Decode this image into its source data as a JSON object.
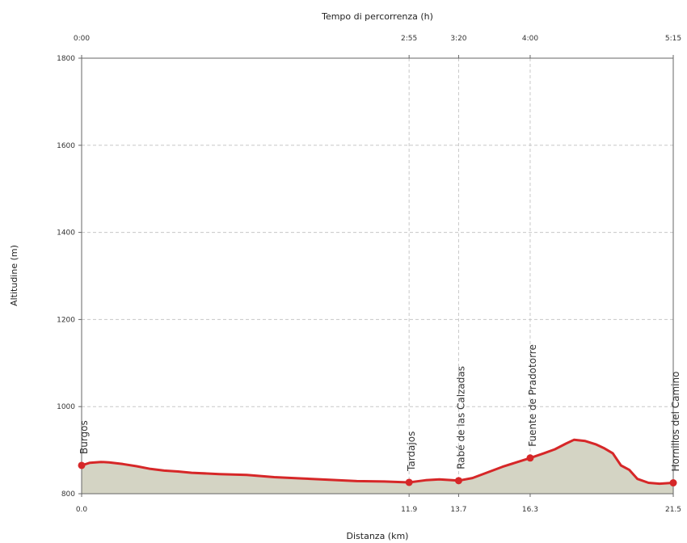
{
  "chart_data": {
    "type": "area",
    "title": "",
    "xlabel": "Distanza (km)",
    "ylabel": "Altitudine (m)",
    "top_xlabel": "Tempo di percorrenza (h)",
    "xlim": [
      0,
      21.5
    ],
    "ylim": [
      800,
      1800
    ],
    "grid": true,
    "y_ticks": [
      800,
      1000,
      1200,
      1400,
      1600,
      1800
    ],
    "x_ticks": [
      {
        "value": 0.0,
        "label": "0.0"
      },
      {
        "value": 11.9,
        "label": "11.9"
      },
      {
        "value": 13.7,
        "label": "13.7"
      },
      {
        "value": 16.3,
        "label": "16.3"
      },
      {
        "value": 21.5,
        "label": "21.5"
      }
    ],
    "time_ticks": [
      {
        "value": 0.0,
        "label": "0:00"
      },
      {
        "value": 11.9,
        "label": "2:55"
      },
      {
        "value": 13.7,
        "label": "3:20"
      },
      {
        "value": 16.3,
        "label": "4:00"
      },
      {
        "value": 21.5,
        "label": "5:15"
      }
    ],
    "waypoints": [
      {
        "name": "Burgos",
        "x": 0.0,
        "y": 865
      },
      {
        "name": "Tardajos",
        "x": 11.9,
        "y": 826
      },
      {
        "name": "Rabé de las Calzadas",
        "x": 13.7,
        "y": 830
      },
      {
        "name": "Fuente de Pradotorre",
        "x": 16.3,
        "y": 882
      },
      {
        "name": "Hornillos del Camino",
        "x": 21.5,
        "y": 825
      }
    ],
    "profile": {
      "x": [
        0,
        0.3,
        0.7,
        1.0,
        1.5,
        2.0,
        2.5,
        3.0,
        3.5,
        4.0,
        5.0,
        6.0,
        7.0,
        8.0,
        9.0,
        10.0,
        11.0,
        11.9,
        12.5,
        13.0,
        13.7,
        14.2,
        14.8,
        15.3,
        15.8,
        16.3,
        16.8,
        17.2,
        17.6,
        17.9,
        18.3,
        18.7,
        19.0,
        19.3,
        19.6,
        19.9,
        20.2,
        20.6,
        21.0,
        21.5
      ],
      "y": [
        865,
        871,
        873,
        872,
        868,
        863,
        857,
        853,
        851,
        848,
        845,
        843,
        838,
        835,
        832,
        829,
        828,
        826,
        831,
        833,
        830,
        836,
        850,
        862,
        872,
        882,
        893,
        902,
        915,
        924,
        921,
        913,
        904,
        893,
        865,
        855,
        834,
        825,
        823,
        825
      ]
    },
    "colors": {
      "line": "#d62728",
      "fill": "#d4d4c4",
      "grid": "#c8c8c8",
      "axis": "#666666"
    }
  }
}
